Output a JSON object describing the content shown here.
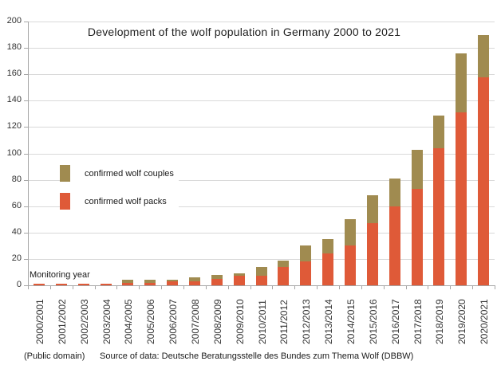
{
  "footer": {
    "license": "(Public domain)",
    "source": "Source of data: Deutsche Beratungsstelle des Bundes zum Thema Wolf (DBBW)"
  },
  "chart_data": {
    "type": "bar",
    "stacked": true,
    "title": "Development of the wolf population in Germany 2000 to 2021",
    "xlabel": "Monitoring year",
    "ylabel": "",
    "ylim": [
      0,
      200
    ],
    "ytick_step": 20,
    "grid": "horizontal",
    "legend_position": "middle-left",
    "categories": [
      "2000/2001",
      "2001/2002",
      "2002/2003",
      "2003/2004",
      "2004/2005",
      "2005/2006",
      "2006/2007",
      "2007/2008",
      "2008/2009",
      "2009/2010",
      "2010/2011",
      "2011/2012",
      "2012/2013",
      "2013/2014",
      "2014/2015",
      "2015/2016",
      "2016/2017",
      "2017/2018",
      "2018/2019",
      "2019/2020",
      "2020/2021"
    ],
    "series": [
      {
        "name": "confirmed wolf packs",
        "color": "#df5a38",
        "values": [
          1,
          1,
          1,
          1,
          2,
          2,
          3,
          3,
          5,
          7,
          7,
          14,
          18,
          24,
          30,
          47,
          60,
          73,
          104,
          131,
          158
        ]
      },
      {
        "name": "confirmed wolf couples",
        "color": "#a08b50",
        "values": [
          0,
          0,
          0,
          0,
          2,
          2,
          1,
          3,
          3,
          2,
          7,
          5,
          12,
          11,
          20,
          21,
          21,
          30,
          25,
          45,
          32
        ]
      }
    ],
    "legend": [
      {
        "label": "confirmed wolf couples",
        "color": "#a08b50"
      },
      {
        "label": "confirmed wolf packs",
        "color": "#df5a38"
      }
    ],
    "axis_color": "#a6a6a6",
    "grid_color": "#d9d9d9"
  }
}
